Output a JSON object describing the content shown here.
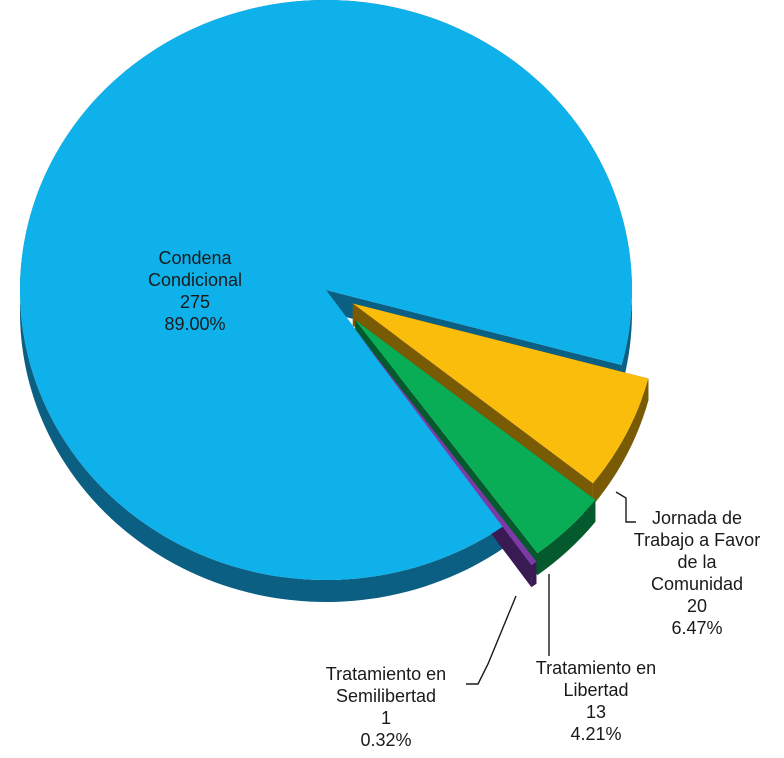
{
  "chart_data": {
    "type": "pie",
    "title": "",
    "total": 309,
    "slices": [
      {
        "label_lines": [
          "Condena",
          "Condicional"
        ],
        "value": 275,
        "value_text": "275",
        "percent": 89.0,
        "percent_text": "89.00%",
        "color": "#0fb1ea",
        "side_color": "#0b5f83",
        "exploded": false
      },
      {
        "label_lines": [
          "Jornada de",
          "Trabajo a Favor",
          "de la",
          "Comunidad"
        ],
        "value": 20,
        "value_text": "20",
        "percent": 6.47,
        "percent_text": "6.47%",
        "color": "#fbbd0c",
        "side_color": "#7a5b05",
        "exploded": true
      },
      {
        "label_lines": [
          "Tratamiento en",
          "Libertad"
        ],
        "value": 13,
        "value_text": "13",
        "percent": 4.21,
        "percent_text": "4.21%",
        "color": "#08ad55",
        "side_color": "#045a2c",
        "exploded": true
      },
      {
        "label_lines": [
          "Tratamiento en",
          "Semilibertad"
        ],
        "value": 1,
        "value_text": "1",
        "percent": 0.32,
        "percent_text": "0.32%",
        "color": "#7b3aa6",
        "side_color": "#3a1a52",
        "exploded": true
      }
    ],
    "legend": "none",
    "style": "3d-exploded-pie"
  }
}
